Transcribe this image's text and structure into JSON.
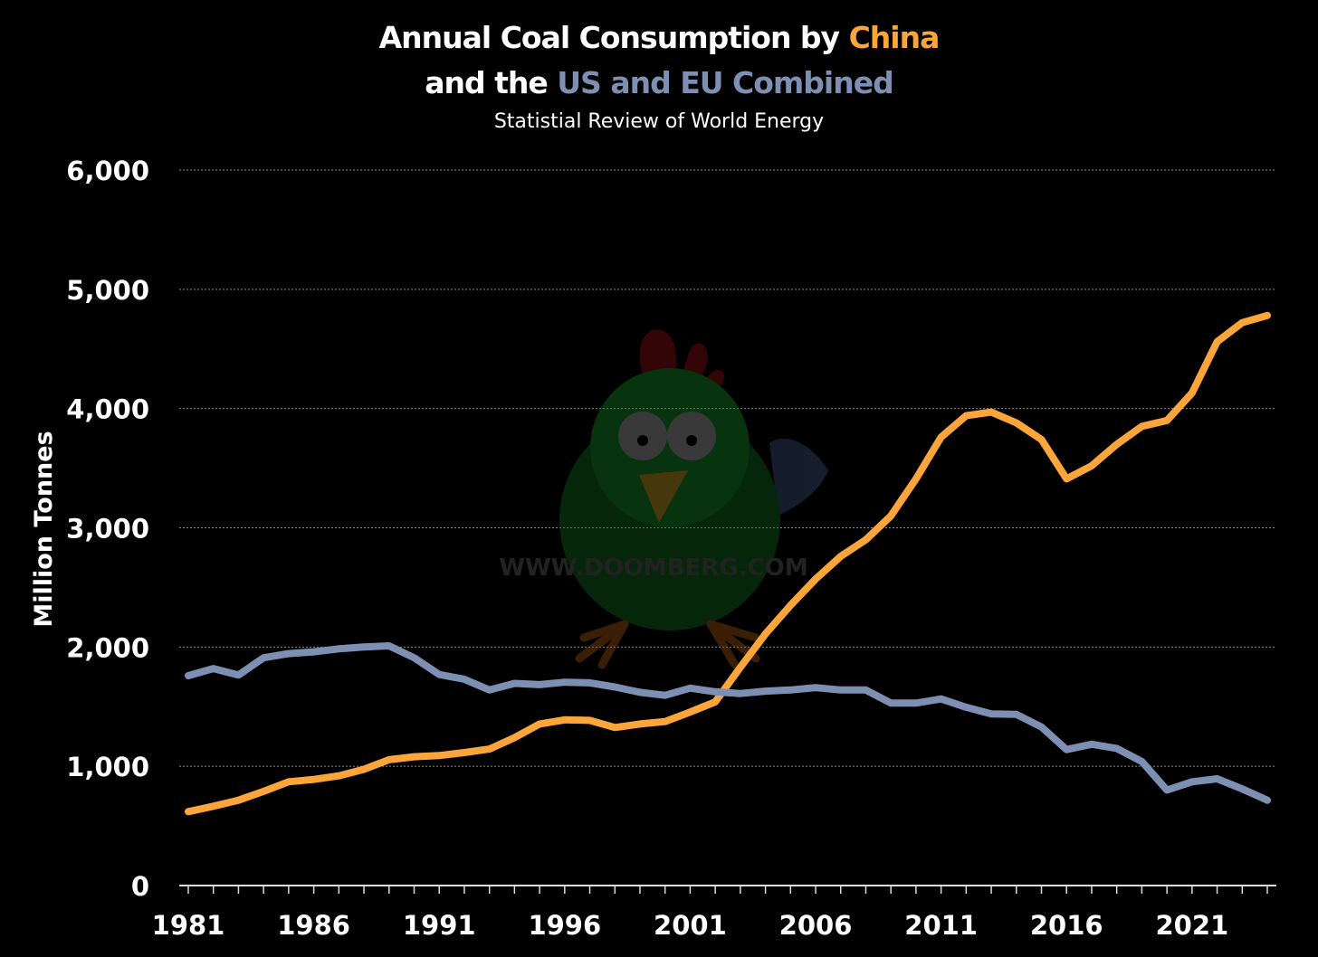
{
  "title": {
    "line1_prefix": "Annual Coal Consumption by ",
    "line1_highlight": "China",
    "line2_prefix": "and the ",
    "line2_highlight": "US and EU Combined"
  },
  "subtitle": "Statistial Review of World Energy",
  "watermark": "WWW.DOOMBERG.COM",
  "colors": {
    "background": "#000000",
    "china": "#fca53a",
    "us_eu": "#7d8fb3",
    "grid": "#8a8a8a"
  },
  "chart_data": {
    "type": "line",
    "ylabel": "Million Tonnes",
    "xlabel": "",
    "ylim": [
      0,
      6000
    ],
    "xlim": [
      1981,
      2024
    ],
    "grid": true,
    "yticks": [
      "0",
      "1,000",
      "2,000",
      "3,000",
      "4,000",
      "5,000",
      "6,000"
    ],
    "ytick_values": [
      0,
      1000,
      2000,
      3000,
      4000,
      5000,
      6000
    ],
    "xticks": [
      "1981",
      "1986",
      "1991",
      "1996",
      "2001",
      "2006",
      "2011",
      "2016",
      "2021"
    ],
    "xtick_values": [
      1981,
      1986,
      1991,
      1996,
      2001,
      2006,
      2011,
      2016,
      2021
    ],
    "x": [
      1981,
      1982,
      1983,
      1984,
      1985,
      1986,
      1987,
      1988,
      1989,
      1990,
      1991,
      1992,
      1993,
      1994,
      1995,
      1996,
      1997,
      1998,
      1999,
      2000,
      2001,
      2002,
      2003,
      2004,
      2005,
      2006,
      2007,
      2008,
      2009,
      2010,
      2011,
      2012,
      2013,
      2014,
      2015,
      2016,
      2017,
      2018,
      2019,
      2020,
      2021,
      2022,
      2023,
      2024
    ],
    "series": [
      {
        "name": "China",
        "color": "#fca53a",
        "values": [
          620,
          665,
          715,
          790,
          870,
          890,
          920,
          975,
          1055,
          1080,
          1090,
          1115,
          1145,
          1240,
          1355,
          1390,
          1385,
          1325,
          1355,
          1375,
          1455,
          1540,
          1830,
          2110,
          2350,
          2570,
          2760,
          2900,
          3100,
          3410,
          3760,
          3940,
          3970,
          3880,
          3740,
          3410,
          3520,
          3700,
          3850,
          3900,
          4130,
          4560,
          4720,
          4780
        ]
      },
      {
        "name": "US and EU Combined",
        "color": "#7d8fb3",
        "values": [
          1760,
          1820,
          1765,
          1910,
          1945,
          1960,
          1985,
          2000,
          2010,
          1910,
          1770,
          1730,
          1640,
          1695,
          1685,
          1705,
          1700,
          1665,
          1620,
          1595,
          1655,
          1625,
          1610,
          1630,
          1640,
          1660,
          1640,
          1640,
          1530,
          1530,
          1565,
          1495,
          1440,
          1435,
          1330,
          1140,
          1185,
          1150,
          1040,
          800,
          870,
          895,
          810,
          715
        ]
      }
    ]
  }
}
